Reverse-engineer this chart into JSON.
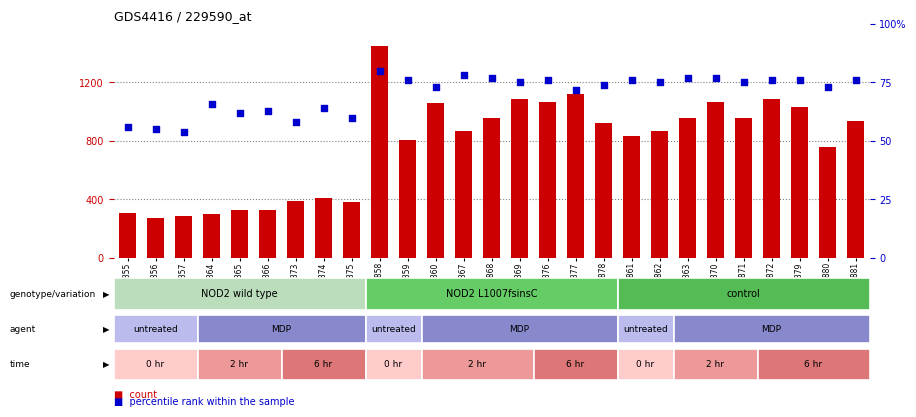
{
  "title": "GDS4416 / 229590_at",
  "samples": [
    "GSM560855",
    "GSM560856",
    "GSM560857",
    "GSM560864",
    "GSM560865",
    "GSM560866",
    "GSM560873",
    "GSM560874",
    "GSM560875",
    "GSM560858",
    "GSM560859",
    "GSM560860",
    "GSM560867",
    "GSM560868",
    "GSM560869",
    "GSM560876",
    "GSM560877",
    "GSM560878",
    "GSM560861",
    "GSM560862",
    "GSM560863",
    "GSM560870",
    "GSM560871",
    "GSM560872",
    "GSM560879",
    "GSM560880",
    "GSM560881"
  ],
  "counts": [
    310,
    275,
    290,
    300,
    330,
    325,
    390,
    410,
    380,
    1450,
    810,
    1060,
    870,
    960,
    1090,
    1070,
    1120,
    920,
    835,
    870,
    960,
    1070,
    960,
    1090,
    1030,
    760,
    940
  ],
  "percentile_ranks": [
    56,
    55,
    54,
    66,
    62,
    63,
    58,
    64,
    60,
    80,
    76,
    73,
    78,
    77,
    75,
    76,
    72,
    74,
    76,
    75,
    77,
    77,
    75,
    76,
    76,
    73,
    76
  ],
  "bar_color": "#cc0000",
  "dot_color": "#0000cc",
  "ylim_left": [
    0,
    1600
  ],
  "ylim_right": [
    0,
    100
  ],
  "yticks_left": [
    0,
    400,
    800,
    1200
  ],
  "yticks_right": [
    0,
    25,
    50,
    75,
    100
  ],
  "ytick_labels_right": [
    "0",
    "25",
    "50",
    "75",
    "100%"
  ],
  "grid_values": [
    400,
    800,
    1200
  ],
  "genotype_groups": [
    {
      "label": "NOD2 wild type",
      "start": 0,
      "end": 9,
      "color": "#bbddbb"
    },
    {
      "label": "NOD2 L1007fsinsC",
      "start": 9,
      "end": 18,
      "color": "#66cc66"
    },
    {
      "label": "control",
      "start": 18,
      "end": 27,
      "color": "#55bb55"
    }
  ],
  "agent_groups": [
    {
      "label": "untreated",
      "start": 0,
      "end": 3,
      "color": "#bbbbee"
    },
    {
      "label": "MDP",
      "start": 3,
      "end": 9,
      "color": "#8888cc"
    },
    {
      "label": "untreated",
      "start": 9,
      "end": 11,
      "color": "#bbbbee"
    },
    {
      "label": "MDP",
      "start": 11,
      "end": 18,
      "color": "#8888cc"
    },
    {
      "label": "untreated",
      "start": 18,
      "end": 20,
      "color": "#bbbbee"
    },
    {
      "label": "MDP",
      "start": 20,
      "end": 27,
      "color": "#8888cc"
    }
  ],
  "time_groups": [
    {
      "label": "0 hr",
      "start": 0,
      "end": 3,
      "color": "#ffcccc"
    },
    {
      "label": "2 hr",
      "start": 3,
      "end": 6,
      "color": "#ee9999"
    },
    {
      "label": "6 hr",
      "start": 6,
      "end": 9,
      "color": "#dd7777"
    },
    {
      "label": "0 hr",
      "start": 9,
      "end": 11,
      "color": "#ffcccc"
    },
    {
      "label": "2 hr",
      "start": 11,
      "end": 15,
      "color": "#ee9999"
    },
    {
      "label": "6 hr",
      "start": 15,
      "end": 18,
      "color": "#dd7777"
    },
    {
      "label": "0 hr",
      "start": 18,
      "end": 20,
      "color": "#ffcccc"
    },
    {
      "label": "2 hr",
      "start": 20,
      "end": 23,
      "color": "#ee9999"
    },
    {
      "label": "6 hr",
      "start": 23,
      "end": 27,
      "color": "#dd7777"
    }
  ],
  "row_labels": [
    "genotype/variation",
    "agent",
    "time"
  ],
  "bar_width": 0.6,
  "background_color": "#ffffff"
}
